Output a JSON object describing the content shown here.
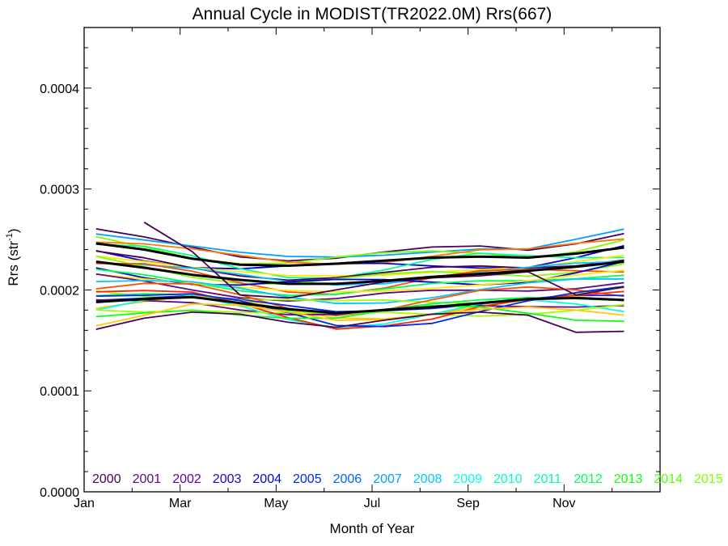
{
  "chart_data": {
    "type": "line",
    "title": "Annual Cycle in MODIST(TR2022.0M) Rrs(667)",
    "xlabel": "Month of Year",
    "ylabel": "Rrs (str",
    "ylabel_sup": "-1",
    "ylabel_close": ")",
    "x_ticks": [
      {
        "label": "Jan",
        "month": 0
      },
      {
        "label": "Mar",
        "month": 2
      },
      {
        "label": "May",
        "month": 4
      },
      {
        "label": "Jul",
        "month": 6
      },
      {
        "label": "Sep",
        "month": 8
      },
      {
        "label": "Nov",
        "month": 10
      }
    ],
    "y_ticks": [
      {
        "label": "0.0000",
        "value": 0.0
      },
      {
        "label": "0.0001",
        "value": 0.0001
      },
      {
        "label": "0.0002",
        "value": 0.0002
      },
      {
        "label": "0.0003",
        "value": 0.0003
      },
      {
        "label": "0.0004",
        "value": 0.0004
      }
    ],
    "xlim": [
      0,
      12
    ],
    "ylim": [
      0,
      0.00046
    ],
    "months": [
      0.25,
      1.25,
      2.25,
      3.25,
      4.25,
      5.25,
      6.25,
      7.25,
      8.25,
      9.25,
      10.25,
      11.25
    ],
    "legend": [
      {
        "label": "2000",
        "color": "#4b0055"
      },
      {
        "label": "2001",
        "color": "#5b0a82"
      },
      {
        "label": "2002",
        "color": "#5a00b0"
      },
      {
        "label": "2003",
        "color": "#2800c8"
      },
      {
        "label": "2004",
        "color": "#0000dc"
      },
      {
        "label": "2005",
        "color": "#0028f0"
      },
      {
        "label": "2006",
        "color": "#0064ff"
      },
      {
        "label": "2007",
        "color": "#00a0ff"
      },
      {
        "label": "2008",
        "color": "#00c8ff"
      },
      {
        "label": "2009",
        "color": "#00ffe6"
      },
      {
        "label": "2010",
        "color": "#00ffc0"
      },
      {
        "label": "2011",
        "color": "#00ff90"
      },
      {
        "label": "2012",
        "color": "#00ff50"
      },
      {
        "label": "2013",
        "color": "#10ff10"
      },
      {
        "label": "2014",
        "color": "#50ff00"
      },
      {
        "label": "2015",
        "color": "#7cff00"
      }
    ],
    "extra_line_colors": [
      "#a0ff00",
      "#c8ff00",
      "#e6f000",
      "#ffe600",
      "#ffc800",
      "#ffa000",
      "#ff7800",
      "#ff5000",
      "#ff2800",
      "#e60000"
    ],
    "mean_lines": [
      {
        "values": [
          0.000246,
          0.00024,
          0.000231,
          0.000225,
          0.000224,
          0.000226,
          0.000229,
          0.000232,
          0.000233,
          0.000232,
          0.000236,
          0.000242
        ]
      },
      {
        "values": [
          0.000228,
          0.000222,
          0.000215,
          0.00021,
          0.000206,
          0.000206,
          0.000209,
          0.000213,
          0.000216,
          0.000219,
          0.000223,
          0.000228
        ]
      },
      {
        "values": [
          0.000188,
          0.000191,
          0.000193,
          0.000187,
          0.000181,
          0.000177,
          0.00018,
          0.000183,
          0.000187,
          0.000191,
          0.000192,
          0.00019
        ]
      }
    ],
    "series_profiles": [
      {
        "values": [
          0.000258,
          0.000251,
          0.000243,
          0.000235,
          0.000231,
          0.000232,
          0.000236,
          0.00024,
          0.000242,
          0.00024,
          0.000248,
          0.000258
        ]
      },
      {
        "values": [
          0.00025,
          0.000244,
          0.000236,
          0.00023,
          0.000227,
          0.000229,
          0.000232,
          0.000236,
          0.000238,
          0.000236,
          0.000242,
          0.00025
        ]
      },
      {
        "values": [
          0.000242,
          0.000236,
          0.000228,
          0.000221,
          0.000218,
          0.000219,
          0.000223,
          0.000227,
          0.000229,
          0.000228,
          0.000232,
          0.000238
        ]
      },
      {
        "values": [
          0.000236,
          0.00023,
          0.000222,
          0.000216,
          0.000212,
          0.000213,
          0.000216,
          0.00022,
          0.000222,
          0.000222,
          0.000226,
          0.000232
        ]
      },
      {
        "values": [
          0.00023,
          0.000224,
          0.000217,
          0.000211,
          0.000207,
          0.000208,
          0.000211,
          0.000215,
          0.000217,
          0.000218,
          0.000222,
          0.000227
        ]
      },
      {
        "values": [
          0.000224,
          0.000219,
          0.000212,
          0.000206,
          0.000203,
          0.000203,
          0.000206,
          0.00021,
          0.000212,
          0.000214,
          0.000218,
          0.000223
        ]
      },
      {
        "values": [
          0.000218,
          0.000213,
          0.000207,
          0.000201,
          0.000197,
          0.000197,
          0.0002,
          0.000204,
          0.000207,
          0.000209,
          0.000213,
          0.000217
        ]
      },
      {
        "values": [
          0.000212,
          0.000209,
          0.000204,
          0.000197,
          0.000191,
          0.000189,
          0.000192,
          0.000196,
          0.0002,
          0.000203,
          0.000206,
          0.000209
        ]
      },
      {
        "values": [
          0.0002,
          0.0002,
          0.000199,
          0.000193,
          0.000186,
          0.000182,
          0.000185,
          0.000189,
          0.000193,
          0.000196,
          0.000198,
          0.000198
        ]
      },
      {
        "values": [
          0.000192,
          0.000194,
          0.000195,
          0.000189,
          0.000182,
          0.000177,
          0.00018,
          0.000184,
          0.000188,
          0.000192,
          0.000193,
          0.000192
        ]
      },
      {
        "values": [
          0.000186,
          0.000189,
          0.000191,
          0.000185,
          0.000178,
          0.000174,
          0.000176,
          0.00018,
          0.000184,
          0.000187,
          0.000188,
          0.000187
        ]
      },
      {
        "values": [
          0.00018,
          0.000184,
          0.000187,
          0.000181,
          0.000174,
          0.00017,
          0.000172,
          0.000176,
          0.00018,
          0.000183,
          0.000183,
          0.000182
        ]
      },
      {
        "values": [
          0.000196,
          0.000197,
          0.000197,
          0.000188,
          0.000175,
          0.000163,
          0.000164,
          0.000169,
          0.000181,
          0.00019,
          0.000196,
          0.000201
        ]
      },
      {
        "values": [
          0.000169,
          0.000176,
          0.000183,
          0.00018,
          0.000175,
          0.000171,
          0.000175,
          0.00018,
          0.000182,
          0.00018,
          0.000175,
          0.000172
        ]
      }
    ],
    "special_lines": [
      {
        "color": "#4b0055",
        "values": [
          0.000161,
          0.000172,
          0.000178,
          0.000176,
          0.000168,
          0.000163,
          0.00017,
          0.000176,
          0.000178,
          0.000175,
          0.000158,
          0.000159
        ]
      },
      {
        "color": "#4b0055",
        "values": [
          null,
          0.000267,
          0.000238,
          0.000195,
          0.000192,
          0.0002,
          0.000208,
          0.000212,
          0.000214,
          0.000218,
          0.000195,
          0.000203
        ]
      }
    ]
  }
}
